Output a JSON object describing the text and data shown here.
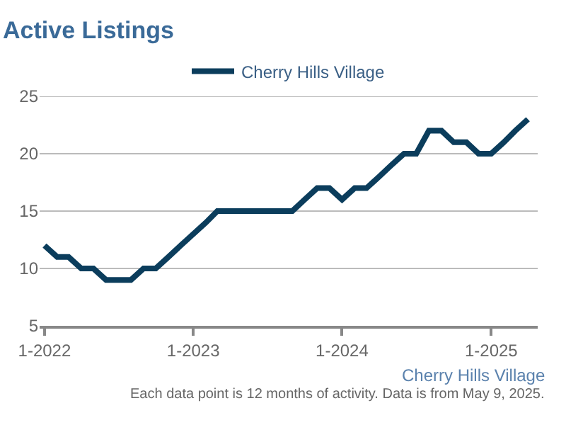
{
  "chart_data": {
    "type": "line",
    "title": "Active Listings",
    "x": [
      "2022-01",
      "2022-02",
      "2022-03",
      "2022-04",
      "2022-05",
      "2022-06",
      "2022-07",
      "2022-08",
      "2022-09",
      "2022-10",
      "2022-11",
      "2022-12",
      "2023-01",
      "2023-02",
      "2023-03",
      "2023-04",
      "2023-05",
      "2023-06",
      "2023-07",
      "2023-08",
      "2023-09",
      "2023-10",
      "2023-11",
      "2023-12",
      "2024-01",
      "2024-02",
      "2024-03",
      "2024-04",
      "2024-05",
      "2024-06",
      "2024-07",
      "2024-08",
      "2024-09",
      "2024-10",
      "2024-11",
      "2024-12",
      "2025-01",
      "2025-02",
      "2025-03",
      "2025-04"
    ],
    "series": [
      {
        "name": "Cherry Hills Village",
        "color": "#0b3d5c",
        "values": [
          12,
          11,
          11,
          10,
          10,
          9,
          9,
          9,
          10,
          10,
          11,
          12,
          13,
          14,
          15,
          15,
          15,
          15,
          15,
          15,
          15,
          16,
          17,
          17,
          16,
          17,
          17,
          18,
          19,
          20,
          20,
          22,
          22,
          21,
          21,
          20,
          20,
          21,
          22,
          23
        ]
      }
    ],
    "xlim": [
      "2021-12-20",
      "2025-04-25"
    ],
    "xticks": [
      {
        "value": "2022-01-01",
        "label": "1-2022"
      },
      {
        "value": "2023-01-01",
        "label": "1-2023"
      },
      {
        "value": "2024-01-01",
        "label": "1-2024"
      },
      {
        "value": "2025-01-01",
        "label": "1-2025"
      }
    ],
    "ylim": [
      5,
      25
    ],
    "yticks": [
      5,
      10,
      15,
      20,
      25
    ],
    "grid": "y",
    "legend": "top",
    "marker": "none",
    "line_style": "solid",
    "annotations": [
      "Cherry Hills Village",
      "Each data point is 12 months of activity. Data is from May 9, 2025."
    ]
  }
}
